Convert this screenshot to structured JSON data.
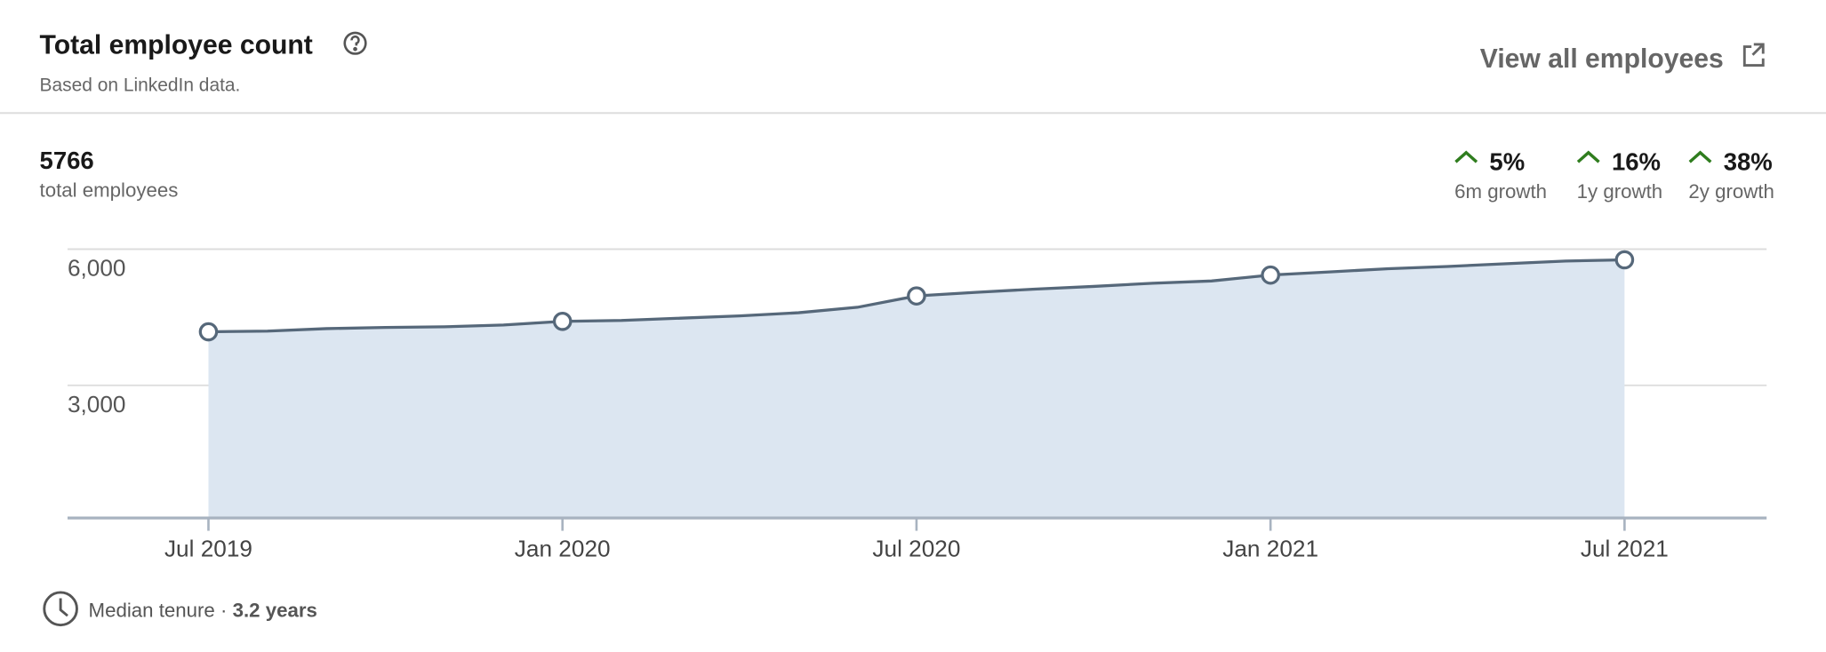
{
  "header": {
    "title": "Total employee count",
    "subtitle": "Based on LinkedIn data.",
    "link": "View all employees"
  },
  "summary": {
    "total": 5766,
    "label": "total employees"
  },
  "growth": [
    {
      "value": "5%",
      "label": "6m growth"
    },
    {
      "value": "16%",
      "label": "1y growth"
    },
    {
      "value": "38%",
      "label": "2y growth"
    }
  ],
  "chart_data": {
    "type": "area",
    "categories": [
      "Jul 2019",
      null,
      null,
      null,
      null,
      null,
      "Jan 2020",
      null,
      null,
      null,
      null,
      null,
      "Jul 2020",
      null,
      null,
      null,
      null,
      null,
      "Jan 2021",
      null,
      null,
      null,
      null,
      null,
      "Jul 2021"
    ],
    "values": [
      4180,
      4195,
      4250,
      4275,
      4290,
      4330,
      4410,
      4430,
      4480,
      4530,
      4600,
      4720,
      4970,
      5050,
      5120,
      5180,
      5250,
      5300,
      5430,
      5500,
      5570,
      5620,
      5680,
      5740,
      5766
    ],
    "color": "#56687a",
    "fill": "#dce6f1",
    "ylim": [
      0,
      6000
    ],
    "yticks": [
      {
        "value": 3000,
        "label": "3,000"
      },
      {
        "value": 6000,
        "label": "6,000"
      }
    ],
    "grid": true
  },
  "footer": {
    "label": "Median tenure ·",
    "value": "3.2 years"
  }
}
